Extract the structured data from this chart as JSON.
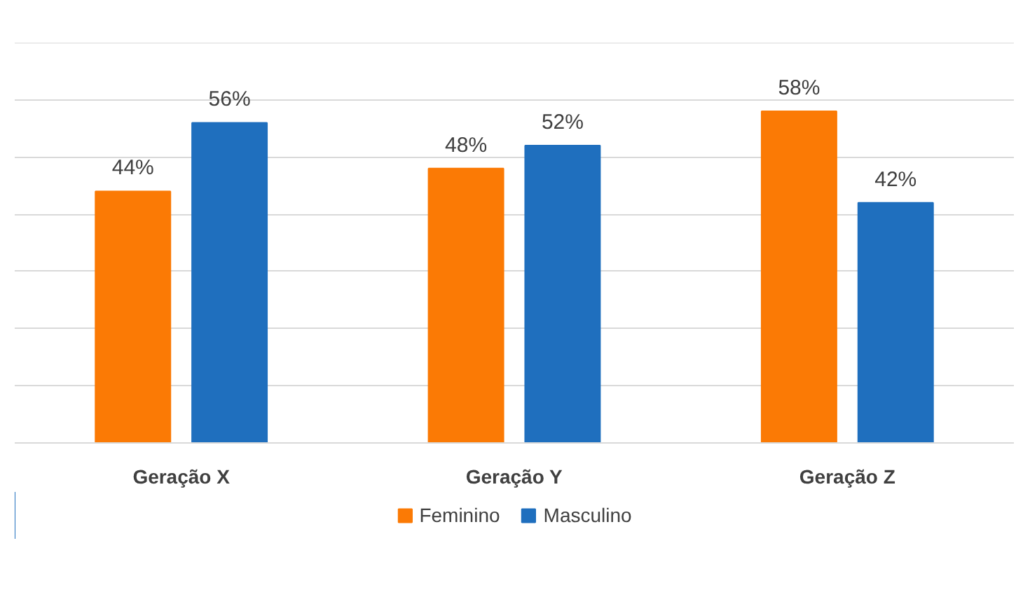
{
  "chart_data": {
    "type": "bar",
    "categories": [
      "Geração X",
      "Geração Y",
      "Geração Z"
    ],
    "series": [
      {
        "name": "Feminino",
        "color": "#fb7a05",
        "values": [
          44,
          48,
          58
        ],
        "value_labels": [
          "44%",
          "48%",
          "58%"
        ]
      },
      {
        "name": "Masculino",
        "color": "#1f6fbe",
        "values": [
          56,
          52,
          42
        ],
        "value_labels": [
          "56%",
          "52%",
          "42%"
        ]
      }
    ],
    "ylim": [
      0,
      70
    ],
    "yticks": [
      {
        "value": 0,
        "label": null
      },
      {
        "value": 10,
        "label": null
      },
      {
        "value": 20,
        "label": null
      },
      {
        "value": 30,
        "label": null
      },
      {
        "value": 40,
        "label": null
      },
      {
        "value": 50,
        "label": null
      },
      {
        "value": 60,
        "label": null
      },
      {
        "value": 70,
        "label": null
      }
    ],
    "grid": "y",
    "legend": "bottom",
    "tick_labels": "x"
  }
}
